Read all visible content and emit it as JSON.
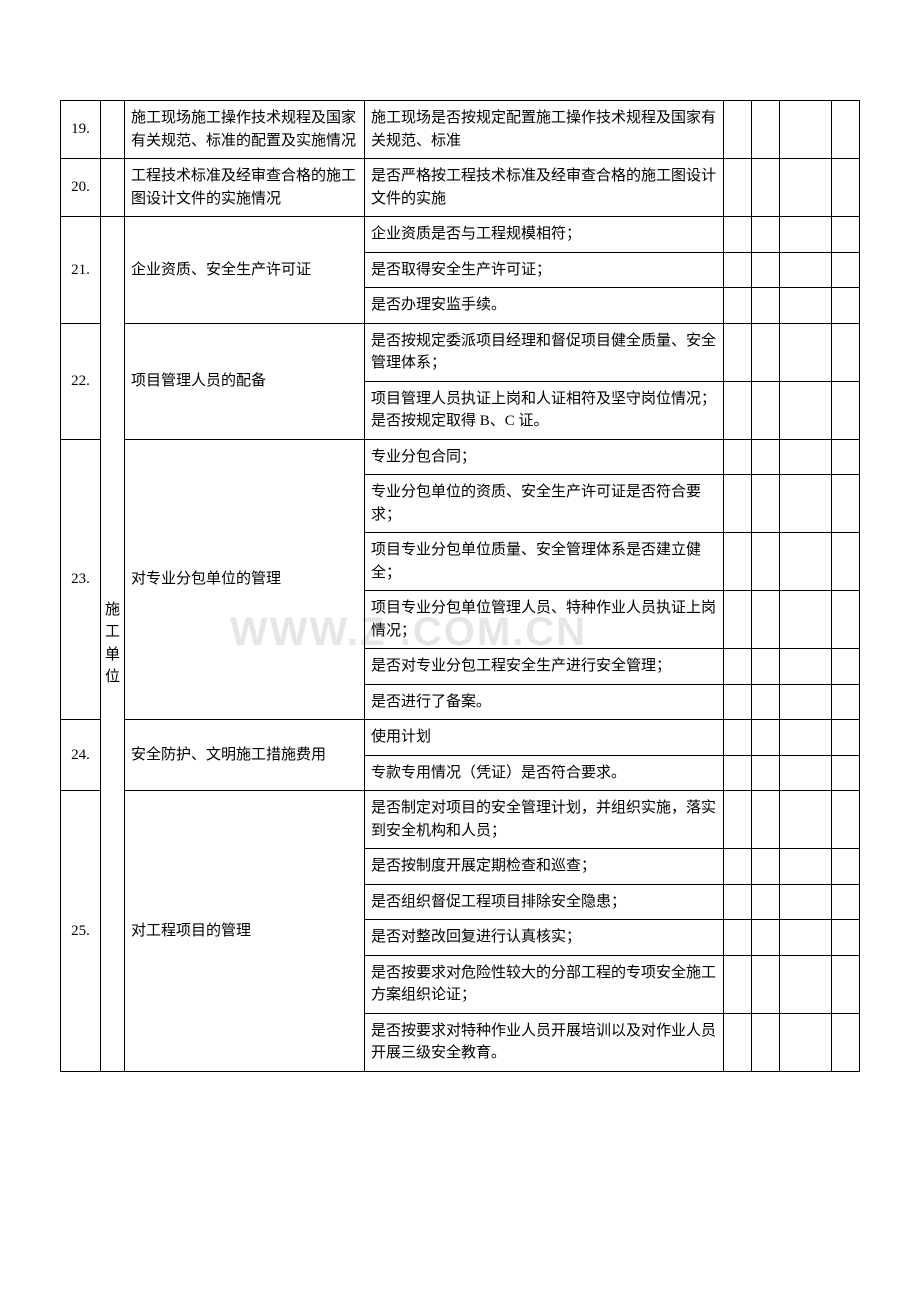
{
  "watermark": "WWW.Z    .COM.CN",
  "category_label": "施工单位",
  "rows": [
    {
      "num": "19.",
      "item": "施工现场施工操作技术规程及国家有关规范、标准的配置及实施情况",
      "details": [
        "施工现场是否按规定配置施工操作技术规程及国家有关规范、标准"
      ]
    },
    {
      "num": "20.",
      "item": "工程技术标准及经审查合格的施工图设计文件的实施情况",
      "details": [
        "是否严格按工程技术标准及经审查合格的施工图设计文件的实施"
      ]
    },
    {
      "num": "21.",
      "item": "企业资质、安全生产许可证",
      "details": [
        "企业资质是否与工程规模相符；",
        "是否取得安全生产许可证；",
        "是否办理安监手续。"
      ]
    },
    {
      "num": "22.",
      "item": "项目管理人员的配备",
      "details": [
        "是否按规定委派项目经理和督促项目健全质量、安全管理体系；",
        "项目管理人员执证上岗和人证相符及坚守岗位情况；是否按规定取得 B、C 证。"
      ]
    },
    {
      "num": "23.",
      "item": "对专业分包单位的管理",
      "details": [
        "专业分包合同；",
        "专业分包单位的资质、安全生产许可证是否符合要求；",
        "项目专业分包单位质量、安全管理体系是否建立健全；",
        "项目专业分包单位管理人员、特种作业人员执证上岗情况；",
        "是否对专业分包工程安全生产进行安全管理；",
        "是否进行了备案。"
      ]
    },
    {
      "num": "24.",
      "item": "安全防护、文明施工措施费用",
      "details": [
        "使用计划",
        "专款专用情况（凭证）是否符合要求。"
      ]
    },
    {
      "num": "25.",
      "item": "对工程项目的管理",
      "details": [
        "是否制定对项目的安全管理计划，并组织实施，落实到安全机构和人员；",
        "是否按制度开展定期检查和巡查；",
        "是否组织督促工程项目排除安全隐患；",
        "是否对整改回复进行认真核实；",
        "是否按要求对危险性较大的分部工程的专项安全施工方案组织论证；",
        "是否按要求对特种作业人员开展培训以及对作业人员开展三级安全教育。"
      ]
    }
  ]
}
